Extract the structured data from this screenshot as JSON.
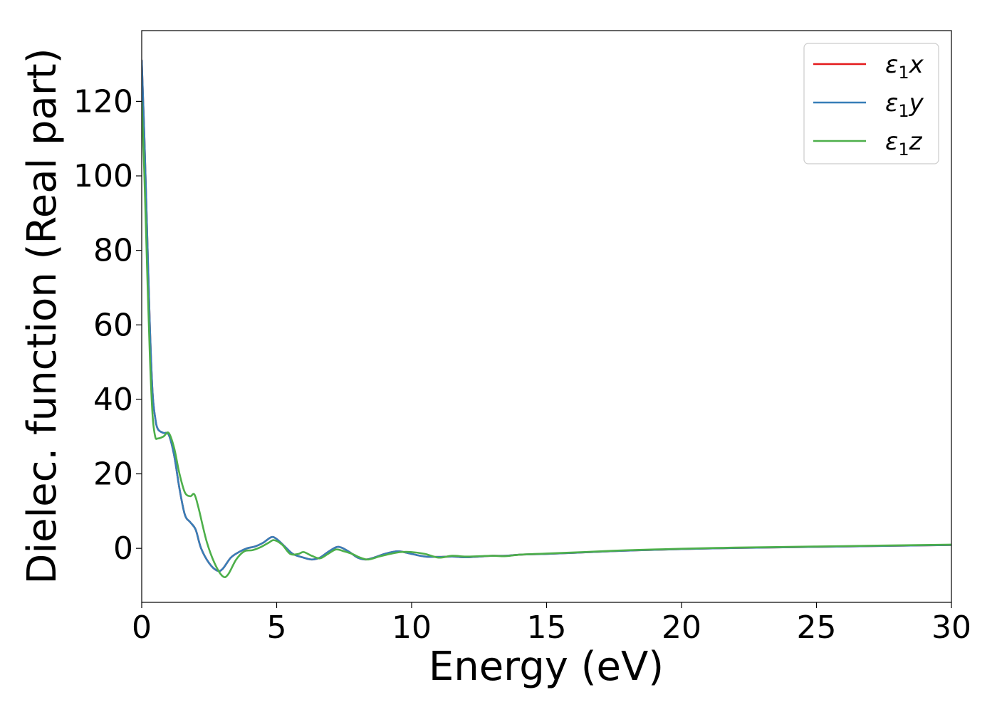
{
  "chart_data": {
    "type": "line",
    "xlabel": "Energy (eV)",
    "ylabel": "Dielec. function (Real part)",
    "xlim": [
      0,
      30
    ],
    "ylim": [
      -14.5,
      139
    ],
    "xticks": [
      "0",
      "5",
      "10",
      "15",
      "20",
      "25",
      "30"
    ],
    "yticks": [
      "0",
      "20",
      "40",
      "60",
      "80",
      "100",
      "120"
    ],
    "grid": false,
    "legend_position": "top-right",
    "series": [
      {
        "name": "ε1x",
        "color": "#e41a1c",
        "points": [
          [
            0,
            131
          ],
          [
            0.1,
            110
          ],
          [
            0.2,
            85
          ],
          [
            0.3,
            60
          ],
          [
            0.4,
            42
          ],
          [
            0.5,
            35
          ],
          [
            0.6,
            32
          ],
          [
            0.8,
            31
          ],
          [
            1.0,
            30.5
          ],
          [
            1.2,
            25
          ],
          [
            1.4,
            16
          ],
          [
            1.6,
            9
          ],
          [
            1.8,
            7
          ],
          [
            2.0,
            5
          ],
          [
            2.2,
            0
          ],
          [
            2.5,
            -4
          ],
          [
            2.8,
            -6
          ],
          [
            3.0,
            -5.5
          ],
          [
            3.3,
            -2.5
          ],
          [
            3.6,
            -1
          ],
          [
            3.9,
            0
          ],
          [
            4.2,
            0.5
          ],
          [
            4.5,
            1.5
          ],
          [
            4.8,
            3
          ],
          [
            5.0,
            2.5
          ],
          [
            5.3,
            0.5
          ],
          [
            5.6,
            -1.5
          ],
          [
            6.0,
            -2.5
          ],
          [
            6.3,
            -3
          ],
          [
            6.6,
            -2.5
          ],
          [
            6.9,
            -1
          ],
          [
            7.2,
            0.3
          ],
          [
            7.4,
            0.2
          ],
          [
            7.7,
            -1
          ],
          [
            8.0,
            -2.5
          ],
          [
            8.3,
            -3
          ],
          [
            8.6,
            -2.5
          ],
          [
            9.0,
            -1.5
          ],
          [
            9.5,
            -0.8
          ],
          [
            10.0,
            -1.5
          ],
          [
            10.5,
            -2.2
          ],
          [
            11.0,
            -2.3
          ],
          [
            11.5,
            -2.2
          ],
          [
            12.0,
            -2.4
          ],
          [
            12.5,
            -2.2
          ],
          [
            13.0,
            -2
          ],
          [
            13.5,
            -2
          ],
          [
            14.0,
            -1.7
          ],
          [
            15.0,
            -1.5
          ],
          [
            16.0,
            -1.2
          ],
          [
            17.0,
            -0.9
          ],
          [
            18.0,
            -0.6
          ],
          [
            19.0,
            -0.4
          ],
          [
            20.0,
            -0.2
          ],
          [
            22.0,
            0.1
          ],
          [
            24.0,
            0.3
          ],
          [
            26.0,
            0.5
          ],
          [
            28.0,
            0.7
          ],
          [
            30.0,
            0.9
          ]
        ]
      },
      {
        "name": "ε1y",
        "color": "#377eb8",
        "points": [
          [
            0,
            131
          ],
          [
            0.1,
            110
          ],
          [
            0.2,
            85
          ],
          [
            0.3,
            60
          ],
          [
            0.4,
            42
          ],
          [
            0.5,
            35
          ],
          [
            0.6,
            32
          ],
          [
            0.8,
            31
          ],
          [
            1.0,
            30.5
          ],
          [
            1.2,
            25
          ],
          [
            1.4,
            16
          ],
          [
            1.6,
            9
          ],
          [
            1.8,
            7
          ],
          [
            2.0,
            5
          ],
          [
            2.2,
            0
          ],
          [
            2.5,
            -4
          ],
          [
            2.8,
            -6
          ],
          [
            3.0,
            -5.5
          ],
          [
            3.3,
            -2.5
          ],
          [
            3.6,
            -1
          ],
          [
            3.9,
            0
          ],
          [
            4.2,
            0.5
          ],
          [
            4.5,
            1.5
          ],
          [
            4.8,
            3
          ],
          [
            5.0,
            2.5
          ],
          [
            5.3,
            0.5
          ],
          [
            5.6,
            -1.5
          ],
          [
            6.0,
            -2.5
          ],
          [
            6.3,
            -3
          ],
          [
            6.6,
            -2.5
          ],
          [
            6.9,
            -1
          ],
          [
            7.2,
            0.3
          ],
          [
            7.4,
            0.2
          ],
          [
            7.7,
            -1
          ],
          [
            8.0,
            -2.5
          ],
          [
            8.3,
            -3
          ],
          [
            8.6,
            -2.5
          ],
          [
            9.0,
            -1.5
          ],
          [
            9.5,
            -0.8
          ],
          [
            10.0,
            -1.5
          ],
          [
            10.5,
            -2.2
          ],
          [
            11.0,
            -2.3
          ],
          [
            11.5,
            -2.2
          ],
          [
            12.0,
            -2.4
          ],
          [
            12.5,
            -2.2
          ],
          [
            13.0,
            -2
          ],
          [
            13.5,
            -2
          ],
          [
            14.0,
            -1.7
          ],
          [
            15.0,
            -1.5
          ],
          [
            16.0,
            -1.2
          ],
          [
            17.0,
            -0.9
          ],
          [
            18.0,
            -0.6
          ],
          [
            19.0,
            -0.4
          ],
          [
            20.0,
            -0.2
          ],
          [
            22.0,
            0.1
          ],
          [
            24.0,
            0.3
          ],
          [
            26.0,
            0.5
          ],
          [
            28.0,
            0.7
          ],
          [
            30.0,
            0.9
          ]
        ]
      },
      {
        "name": "ε1z",
        "color": "#4daf4a",
        "points": [
          [
            0,
            120
          ],
          [
            0.1,
            100
          ],
          [
            0.2,
            75
          ],
          [
            0.3,
            52
          ],
          [
            0.4,
            36
          ],
          [
            0.5,
            30
          ],
          [
            0.6,
            29.5
          ],
          [
            0.8,
            30
          ],
          [
            1.0,
            31
          ],
          [
            1.2,
            27
          ],
          [
            1.4,
            20
          ],
          [
            1.6,
            15
          ],
          [
            1.8,
            14
          ],
          [
            1.95,
            14.5
          ],
          [
            2.1,
            11
          ],
          [
            2.4,
            2
          ],
          [
            2.7,
            -4
          ],
          [
            3.0,
            -7.5
          ],
          [
            3.2,
            -7
          ],
          [
            3.5,
            -3
          ],
          [
            3.8,
            -0.8
          ],
          [
            4.1,
            -0.5
          ],
          [
            4.4,
            0.3
          ],
          [
            4.7,
            1.5
          ],
          [
            4.9,
            2.2
          ],
          [
            5.2,
            1
          ],
          [
            5.5,
            -1.5
          ],
          [
            5.8,
            -1.5
          ],
          [
            6.0,
            -1
          ],
          [
            6.3,
            -2
          ],
          [
            6.6,
            -2.7
          ],
          [
            6.9,
            -1.5
          ],
          [
            7.2,
            -0.3
          ],
          [
            7.5,
            -0.8
          ],
          [
            7.8,
            -1.5
          ],
          [
            8.1,
            -2.5
          ],
          [
            8.4,
            -3
          ],
          [
            8.8,
            -2.2
          ],
          [
            9.2,
            -1.5
          ],
          [
            9.6,
            -1
          ],
          [
            10.0,
            -1
          ],
          [
            10.5,
            -1.5
          ],
          [
            11.0,
            -2.5
          ],
          [
            11.5,
            -2
          ],
          [
            12.0,
            -2.2
          ],
          [
            12.5,
            -2.1
          ],
          [
            13.0,
            -2
          ],
          [
            13.5,
            -2.1
          ],
          [
            14.0,
            -1.7
          ],
          [
            15.0,
            -1.4
          ],
          [
            16.0,
            -1.1
          ],
          [
            17.0,
            -0.8
          ],
          [
            18.0,
            -0.5
          ],
          [
            19.0,
            -0.3
          ],
          [
            20.0,
            -0.1
          ],
          [
            22.0,
            0.2
          ],
          [
            24.0,
            0.4
          ],
          [
            26.0,
            0.6
          ],
          [
            28.0,
            0.8
          ],
          [
            30.0,
            1.0
          ]
        ]
      }
    ]
  }
}
